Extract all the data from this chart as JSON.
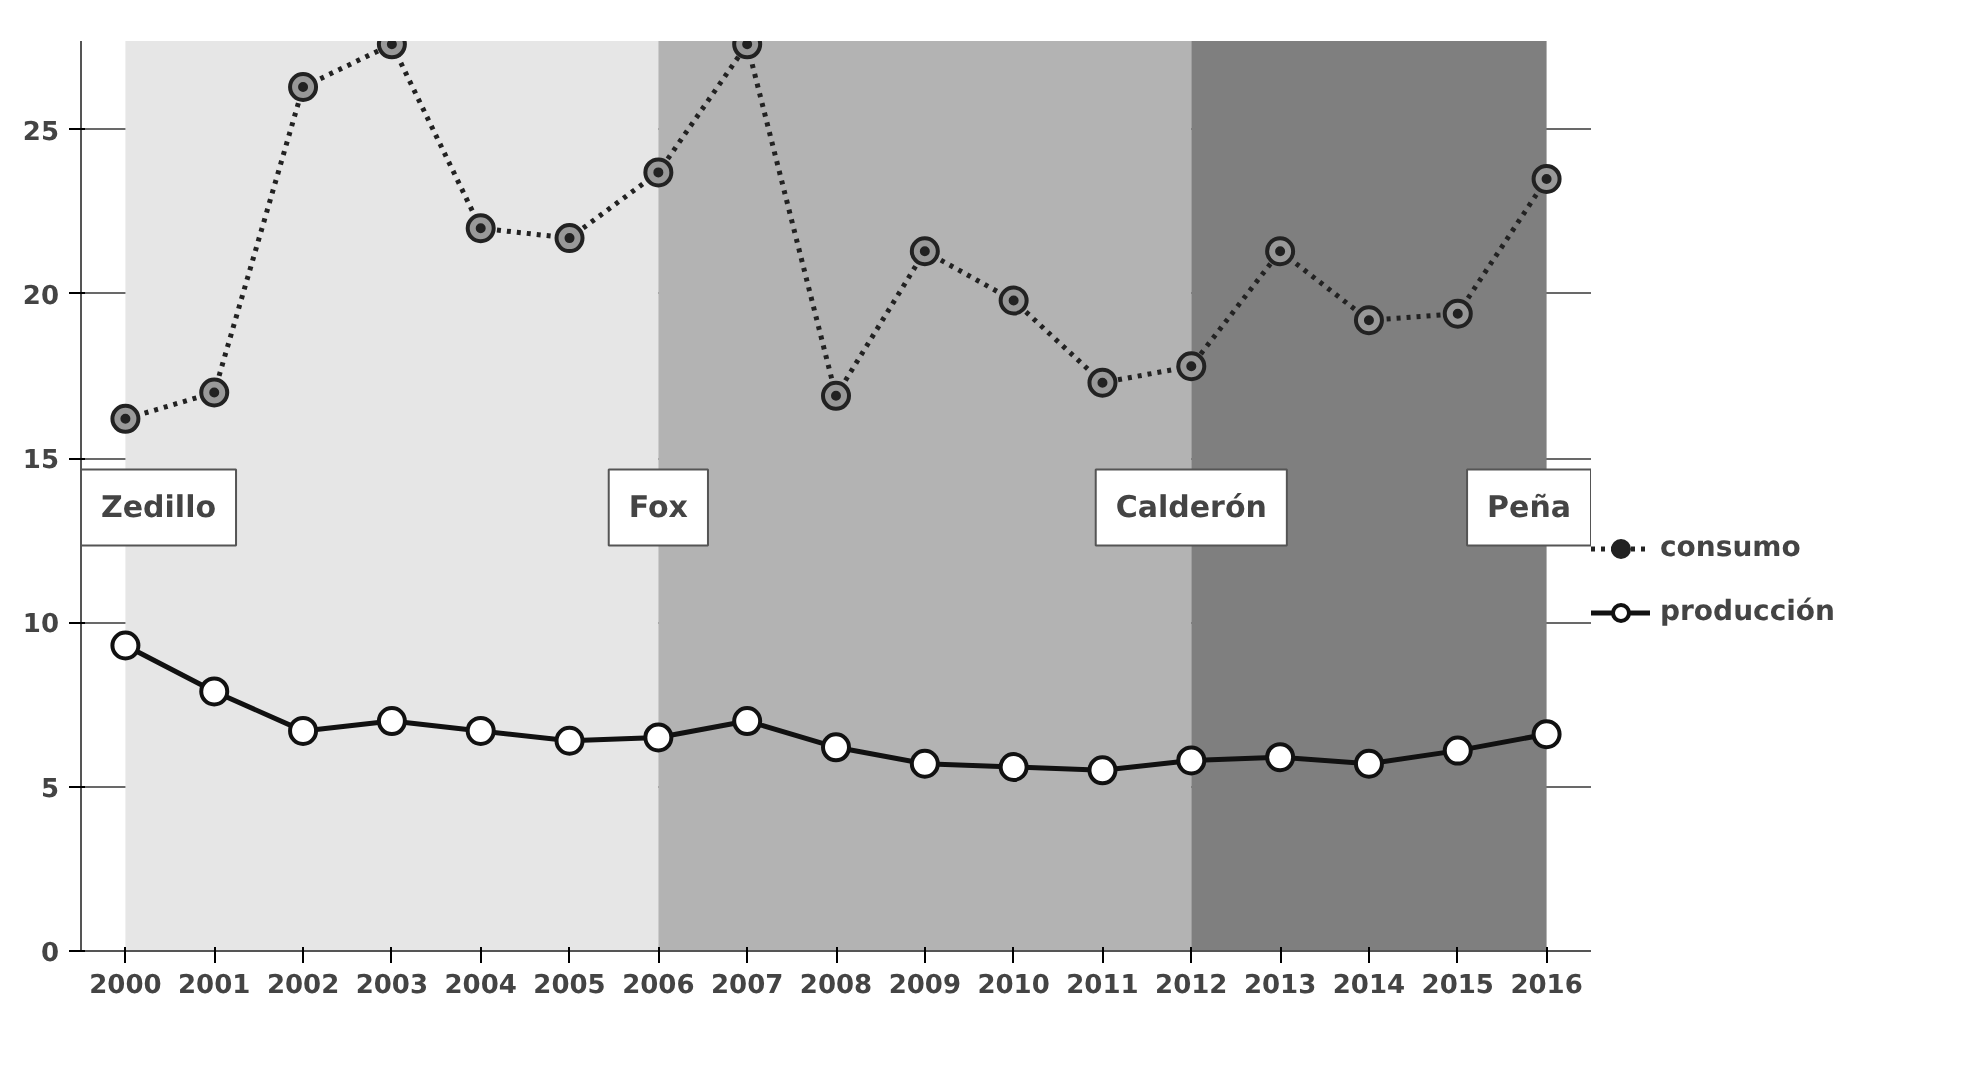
{
  "chart_data": {
    "type": "line",
    "categories": [
      "2000",
      "2001",
      "2002",
      "2003",
      "2004",
      "2005",
      "2006",
      "2007",
      "2008",
      "2009",
      "2010",
      "2011",
      "2012",
      "2013",
      "2014",
      "2015",
      "2016"
    ],
    "series": [
      {
        "name": "consumo",
        "color": "#222222",
        "line_style": "dotted",
        "marker": "circle",
        "values": [
          16.2,
          17.0,
          26.3,
          27.6,
          22.0,
          21.7,
          23.7,
          27.6,
          16.9,
          21.3,
          19.8,
          17.3,
          17.8,
          21.3,
          19.2,
          19.4,
          23.5
        ]
      },
      {
        "name": "producción",
        "color": "#111111",
        "line_style": "solid",
        "marker": "circle",
        "values": [
          9.3,
          7.9,
          6.7,
          7.0,
          6.7,
          6.4,
          6.5,
          7.0,
          6.2,
          5.7,
          5.6,
          5.5,
          5.8,
          5.9,
          5.7,
          6.1,
          6.6
        ]
      }
    ],
    "ylim": [
      0,
      27.7
    ],
    "yticks": [
      0,
      5,
      10,
      15,
      20,
      25
    ],
    "grid": "y",
    "legend": "right",
    "bands": [
      {
        "axis": "x",
        "from": "2000",
        "to": "2006",
        "color": "#e6e6e6"
      },
      {
        "axis": "x",
        "from": "2006",
        "to": "2012",
        "color": "#b3b3b3"
      },
      {
        "axis": "x",
        "from": "2012",
        "to": "2016",
        "color": "#7f7f7f"
      }
    ],
    "annotations": [
      {
        "text": "Zedillo",
        "x": "2000",
        "y": 13.5
      },
      {
        "text": "Fox",
        "x": "2006",
        "y": 13.5
      },
      {
        "text": "Calderón",
        "x": "2012",
        "y": 13.5
      },
      {
        "text": "Peña",
        "x": "2016",
        "y": 13.5
      }
    ]
  }
}
